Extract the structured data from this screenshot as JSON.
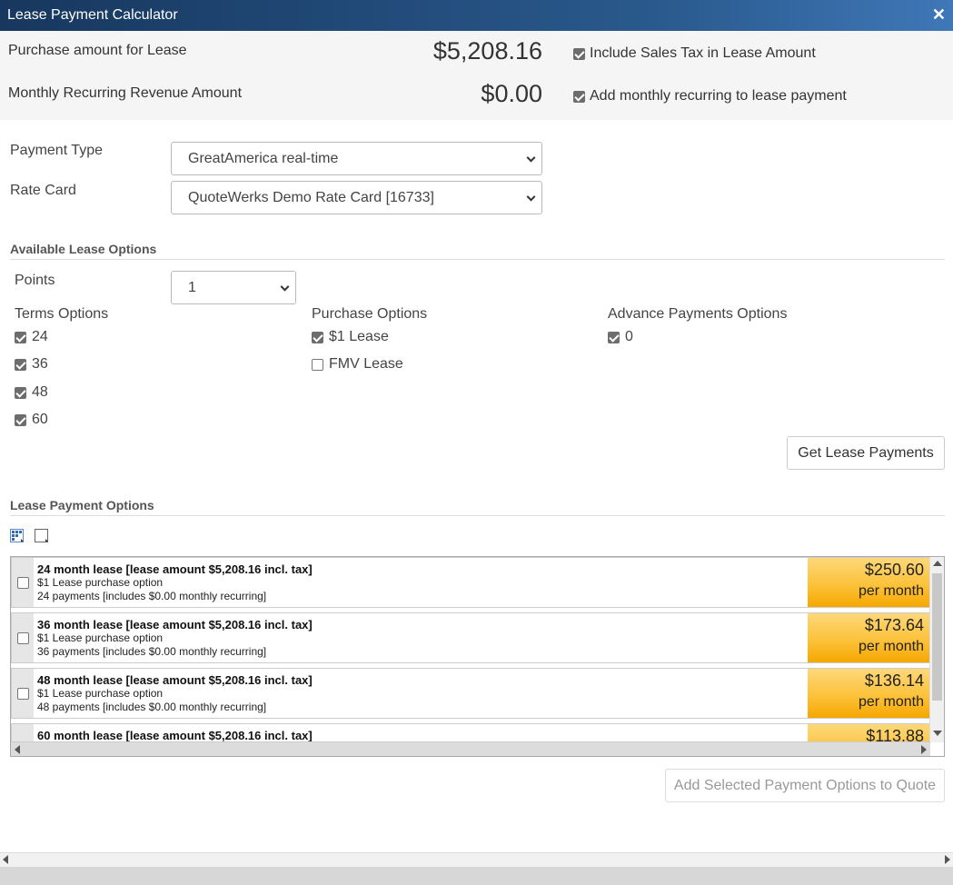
{
  "window": {
    "title": "Lease Payment Calculator",
    "close_glyph": "✕"
  },
  "summary": {
    "purchase_label": "Purchase amount for Lease",
    "purchase_amount": "$5,208.16",
    "include_tax_label": "Include Sales Tax in Lease Amount",
    "include_tax_checked": true,
    "mrr_label": "Monthly Recurring Revenue Amount",
    "mrr_amount": "$0.00",
    "add_mrr_label": "Add monthly recurring to lease payment",
    "add_mrr_checked": true
  },
  "form": {
    "payment_type_label": "Payment Type",
    "payment_type_value": "GreatAmerica real-time",
    "rate_card_label": "Rate Card",
    "rate_card_value": "QuoteWerks Demo Rate Card [16733]"
  },
  "lease_options": {
    "heading": "Available Lease Options",
    "points_label": "Points",
    "points_value": "1",
    "terms_heading": "Terms Options",
    "terms": [
      {
        "label": "24",
        "checked": true
      },
      {
        "label": "36",
        "checked": true
      },
      {
        "label": "48",
        "checked": true
      },
      {
        "label": "60",
        "checked": true
      }
    ],
    "purchase_heading": "Purchase Options",
    "purchase": [
      {
        "label": "$1 Lease",
        "checked": true
      },
      {
        "label": "FMV Lease",
        "checked": false
      }
    ],
    "advance_heading": "Advance Payments Options",
    "advance": [
      {
        "label": "0",
        "checked": true
      }
    ],
    "get_button": "Get Lease Payments"
  },
  "payment_options": {
    "heading": "Lease Payment Options",
    "icons": [
      "select-all-icon",
      "deselect-all-icon"
    ],
    "rows": [
      {
        "title": "24 month lease [lease amount $5,208.16 incl. tax]",
        "line1": "$1 Lease purchase option",
        "line2": "24 payments [includes $0.00 monthly recurring]",
        "price": "$250.60",
        "per": "per month"
      },
      {
        "title": "36 month lease [lease amount $5,208.16 incl. tax]",
        "line1": "$1 Lease purchase option",
        "line2": "36 payments [includes $0.00 monthly recurring]",
        "price": "$173.64",
        "per": "per month"
      },
      {
        "title": "48 month lease [lease amount $5,208.16 incl. tax]",
        "line1": "$1 Lease purchase option",
        "line2": "48 payments [includes $0.00 monthly recurring]",
        "price": "$136.14",
        "per": "per month"
      },
      {
        "title": "60 month lease [lease amount $5,208.16 incl. tax]",
        "line1": "",
        "line2": "",
        "price": "$113.88",
        "per": ""
      }
    ],
    "add_button": "Add Selected Payment Options to Quote"
  },
  "colors": {
    "titlebar": "#17375e",
    "price_highlight": "#fcc23a"
  }
}
